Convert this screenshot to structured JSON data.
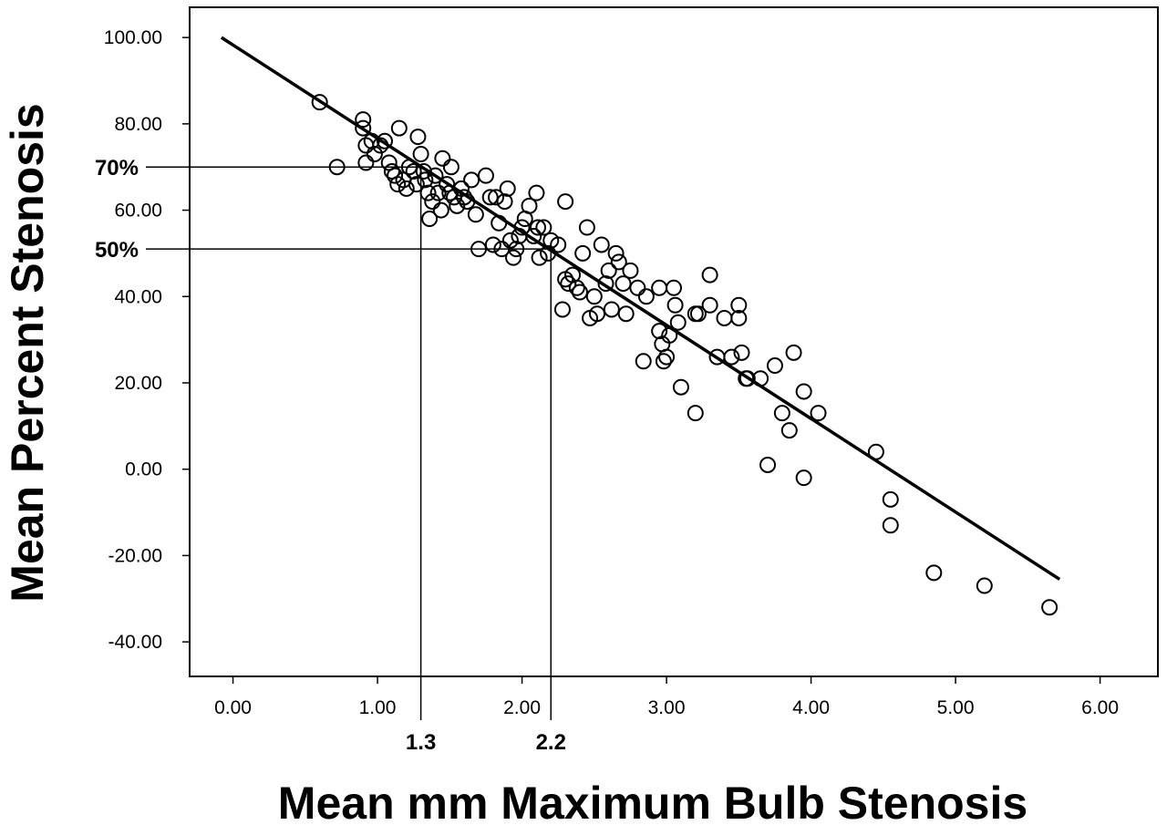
{
  "chart_data": {
    "type": "scatter",
    "title": "",
    "xlabel": "Mean mm Maximum Bulb Stenosis",
    "ylabel": "Mean Percent Stenosis",
    "xlim": [
      -0.3,
      6.4
    ],
    "ylim": [
      -48,
      107
    ],
    "x_ticks": [
      0,
      1,
      2,
      3,
      4,
      5,
      6
    ],
    "x_tick_labels": [
      "0.00",
      "1.00",
      "2.00",
      "3.00",
      "4.00",
      "5.00",
      "6.00"
    ],
    "y_ticks": [
      100,
      80,
      60,
      40,
      20,
      0,
      -20,
      -40
    ],
    "y_tick_labels": [
      "100.00",
      "80.00",
      "60.00",
      "40.00",
      "20.00",
      "0.00",
      "-20.00",
      "-40.00"
    ],
    "grid": false,
    "legend": "none",
    "fit_line": {
      "x": [
        -0.08,
        5.72
      ],
      "y": [
        100,
        -25.5
      ]
    },
    "reference_lines": [
      {
        "label": "70%",
        "y": 70,
        "x": 1.3,
        "x_label": "1.3"
      },
      {
        "label": "50%",
        "y": 51,
        "x": 2.2,
        "x_label": "2.2"
      }
    ],
    "points": [
      [
        0.6,
        85
      ],
      [
        0.72,
        70
      ],
      [
        0.9,
        81
      ],
      [
        0.9,
        79
      ],
      [
        0.92,
        75
      ],
      [
        0.92,
        71
      ],
      [
        0.96,
        76
      ],
      [
        0.98,
        73
      ],
      [
        1.02,
        75
      ],
      [
        1.05,
        76
      ],
      [
        1.08,
        71
      ],
      [
        1.1,
        69
      ],
      [
        1.12,
        68
      ],
      [
        1.14,
        66
      ],
      [
        1.15,
        79
      ],
      [
        1.18,
        67
      ],
      [
        1.2,
        65
      ],
      [
        1.22,
        70
      ],
      [
        1.25,
        69
      ],
      [
        1.27,
        66
      ],
      [
        1.28,
        77
      ],
      [
        1.3,
        73
      ],
      [
        1.32,
        69
      ],
      [
        1.33,
        67
      ],
      [
        1.35,
        64
      ],
      [
        1.36,
        58
      ],
      [
        1.38,
        62
      ],
      [
        1.4,
        68
      ],
      [
        1.42,
        64
      ],
      [
        1.44,
        60
      ],
      [
        1.45,
        72
      ],
      [
        1.48,
        66
      ],
      [
        1.5,
        64
      ],
      [
        1.51,
        70
      ],
      [
        1.53,
        63
      ],
      [
        1.55,
        61
      ],
      [
        1.58,
        65
      ],
      [
        1.6,
        63
      ],
      [
        1.62,
        62
      ],
      [
        1.65,
        67
      ],
      [
        1.68,
        59
      ],
      [
        1.7,
        51
      ],
      [
        1.75,
        68
      ],
      [
        1.78,
        63
      ],
      [
        1.8,
        52
      ],
      [
        1.82,
        63
      ],
      [
        1.84,
        57
      ],
      [
        1.86,
        51
      ],
      [
        1.88,
        62
      ],
      [
        1.9,
        65
      ],
      [
        1.92,
        53
      ],
      [
        1.94,
        49
      ],
      [
        1.96,
        51
      ],
      [
        1.98,
        54
      ],
      [
        2.0,
        56
      ],
      [
        2.02,
        58
      ],
      [
        2.05,
        61
      ],
      [
        2.08,
        54
      ],
      [
        2.1,
        64
      ],
      [
        2.11,
        56
      ],
      [
        2.12,
        49
      ],
      [
        2.15,
        56
      ],
      [
        2.18,
        50
      ],
      [
        2.2,
        53
      ],
      [
        2.25,
        52
      ],
      [
        2.28,
        37
      ],
      [
        2.3,
        62
      ],
      [
        2.3,
        44
      ],
      [
        2.32,
        43
      ],
      [
        2.35,
        45
      ],
      [
        2.38,
        42
      ],
      [
        2.4,
        41
      ],
      [
        2.42,
        50
      ],
      [
        2.45,
        56
      ],
      [
        2.47,
        35
      ],
      [
        2.5,
        40
      ],
      [
        2.52,
        36
      ],
      [
        2.55,
        52
      ],
      [
        2.58,
        43
      ],
      [
        2.6,
        46
      ],
      [
        2.62,
        37
      ],
      [
        2.65,
        50
      ],
      [
        2.67,
        48
      ],
      [
        2.7,
        43
      ],
      [
        2.72,
        36
      ],
      [
        2.75,
        46
      ],
      [
        2.8,
        42
      ],
      [
        2.84,
        25
      ],
      [
        2.86,
        40
      ],
      [
        2.95,
        42
      ],
      [
        2.95,
        32
      ],
      [
        2.97,
        29
      ],
      [
        2.98,
        25
      ],
      [
        3.0,
        26
      ],
      [
        3.02,
        31
      ],
      [
        3.05,
        42
      ],
      [
        3.06,
        38
      ],
      [
        3.08,
        34
      ],
      [
        3.1,
        19
      ],
      [
        3.2,
        13
      ],
      [
        3.2,
        36
      ],
      [
        3.22,
        36
      ],
      [
        3.3,
        38
      ],
      [
        3.3,
        45
      ],
      [
        3.35,
        26
      ],
      [
        3.4,
        35
      ],
      [
        3.45,
        26
      ],
      [
        3.5,
        38
      ],
      [
        3.5,
        35
      ],
      [
        3.52,
        27
      ],
      [
        3.55,
        21
      ],
      [
        3.56,
        21
      ],
      [
        3.65,
        21
      ],
      [
        3.7,
        1
      ],
      [
        3.75,
        24
      ],
      [
        3.8,
        13
      ],
      [
        3.85,
        9
      ],
      [
        3.88,
        27
      ],
      [
        3.95,
        -2
      ],
      [
        3.95,
        18
      ],
      [
        4.05,
        13
      ],
      [
        4.45,
        4
      ],
      [
        4.55,
        -7
      ],
      [
        4.55,
        -13
      ],
      [
        4.85,
        -24
      ],
      [
        5.2,
        -27
      ],
      [
        5.65,
        -32
      ]
    ]
  }
}
